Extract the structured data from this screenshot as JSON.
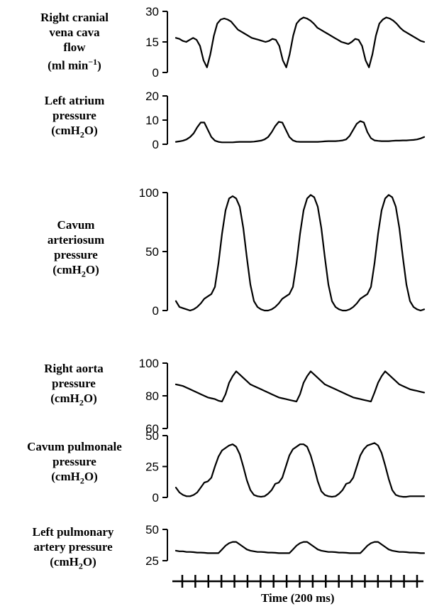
{
  "chart_data": {
    "type": "line",
    "x_axis": {
      "label": "Time (200 ms)",
      "tick_interval_ms": 200,
      "range_ms": [
        0,
        3600
      ]
    },
    "panels": [
      {
        "id": "rcvc",
        "label_lines": [
          "Right cranial",
          "vena cava",
          "flow"
        ],
        "unit_main": "(ml min",
        "unit_sup": "−1",
        "unit_tail": ")",
        "ylim": [
          0,
          30
        ],
        "yticks": [
          0,
          15,
          30
        ],
        "values": [
          17,
          16.5,
          15.5,
          15,
          16,
          17,
          16,
          13,
          6,
          2.5,
          9,
          18,
          24,
          26,
          26.5,
          26,
          25,
          23,
          21,
          20,
          19,
          18,
          17,
          16.5,
          16,
          15.5,
          15,
          15.5,
          16.5,
          16,
          13,
          6,
          2.5,
          9,
          18,
          24,
          26,
          27,
          26.5,
          25.5,
          24,
          22,
          21,
          20,
          19,
          18,
          17,
          16,
          15,
          14.5,
          14,
          15,
          16.5,
          16,
          13,
          6,
          2.5,
          9,
          18,
          24,
          26,
          27,
          26.5,
          25.5,
          24,
          22,
          20.5,
          19.5,
          18.5,
          17.5,
          16.5,
          15.5,
          15
        ]
      },
      {
        "id": "la",
        "label_lines": [
          "Left atrium",
          "pressure"
        ],
        "unit_main": "(cmH",
        "unit_sub": "2",
        "unit_tail": "O)",
        "ylim": [
          0,
          20
        ],
        "yticks": [
          0,
          10,
          20
        ],
        "values": [
          1,
          1.2,
          1.5,
          2,
          3,
          4.5,
          7,
          9,
          9,
          6,
          3,
          1.5,
          1,
          0.8,
          0.8,
          0.8,
          0.8,
          0.9,
          1,
          1,
          1,
          1,
          1.1,
          1.3,
          1.5,
          2,
          3,
          5,
          7.5,
          9.3,
          9,
          6,
          3,
          1.6,
          1.1,
          1,
          1,
          1,
          1,
          1,
          1,
          1.1,
          1.2,
          1.3,
          1.3,
          1.3,
          1.4,
          1.6,
          2,
          3.5,
          6,
          8.5,
          9.6,
          9,
          5,
          2.5,
          1.6,
          1.4,
          1.3,
          1.3,
          1.3,
          1.4,
          1.5,
          1.5,
          1.6,
          1.6,
          1.7,
          1.8,
          2,
          2.4,
          3
        ]
      },
      {
        "id": "ca",
        "label_lines": [
          "Cavum",
          "arteriosum",
          "pressure"
        ],
        "unit_main": "(cmH",
        "unit_sub": "2",
        "unit_tail": "O)",
        "ylim": [
          0,
          100
        ],
        "yticks": [
          0,
          50,
          100
        ],
        "values": [
          8,
          3,
          2,
          1,
          0,
          1,
          3,
          6,
          10,
          12,
          14,
          20,
          40,
          65,
          85,
          95,
          97,
          95,
          88,
          70,
          45,
          22,
          8,
          3,
          1,
          0,
          0,
          1,
          3,
          6,
          10,
          12,
          14,
          20,
          40,
          65,
          85,
          95,
          98,
          96,
          88,
          70,
          45,
          22,
          8,
          3,
          1,
          0,
          0,
          1,
          3,
          6,
          10,
          12,
          14,
          20,
          40,
          65,
          85,
          95,
          98,
          96,
          88,
          70,
          45,
          22,
          8,
          3,
          1,
          0,
          1
        ]
      },
      {
        "id": "ra",
        "label_lines": [
          "Right aorta",
          "pressure"
        ],
        "unit_main": "(cmH",
        "unit_sub": "2",
        "unit_tail": "O)",
        "ylim": [
          60,
          100
        ],
        "yticks": [
          60,
          80,
          100
        ],
        "values": [
          87,
          86.5,
          86,
          85,
          84,
          83,
          82,
          81,
          80,
          79,
          78.5,
          78,
          77,
          76.5,
          81,
          88,
          92,
          95,
          93,
          91,
          89,
          87,
          86,
          85,
          84,
          83,
          82,
          81,
          80,
          79,
          78.5,
          78,
          77.5,
          77,
          76.5,
          81,
          88,
          92,
          95,
          93,
          91,
          89,
          87,
          86,
          85,
          84,
          83,
          82,
          81,
          80,
          79,
          78.5,
          78,
          77.5,
          77,
          76.5,
          82,
          88,
          92,
          95,
          93,
          91,
          89,
          87,
          86,
          85,
          84,
          83.5,
          83,
          82.5,
          82
        ]
      },
      {
        "id": "cp",
        "label_lines": [
          "Cavum pulmonale",
          "pressure"
        ],
        "unit_main": "(cmH",
        "unit_sub": "2",
        "unit_tail": "O)",
        "ylim": [
          0,
          50
        ],
        "yticks": [
          0,
          25,
          50
        ],
        "values": [
          8,
          4,
          2,
          1,
          1,
          2,
          4,
          8,
          12,
          13,
          16,
          25,
          33,
          38,
          40,
          42,
          43,
          41,
          35,
          25,
          14,
          6,
          2,
          1,
          0.5,
          1,
          3,
          6,
          11,
          12,
          16,
          25,
          34,
          39,
          41,
          43,
          43,
          41,
          34,
          24,
          13,
          5,
          2,
          1,
          0.5,
          1,
          3,
          6,
          11,
          12,
          16,
          25,
          34,
          39,
          42,
          43,
          44,
          42,
          36,
          26,
          15,
          6,
          2,
          1,
          0.5,
          0.5,
          1,
          1,
          1,
          1,
          1
        ]
      },
      {
        "id": "lpa",
        "label_lines": [
          "Left pulmonary",
          "artery pressure"
        ],
        "unit_main": "(cmH",
        "unit_sub": "2",
        "unit_tail": "O)",
        "ylim": [
          25,
          50
        ],
        "yticks": [
          25,
          50
        ],
        "values": [
          33,
          32.5,
          32.5,
          32,
          32,
          31.8,
          31.5,
          31.5,
          31.3,
          31,
          31,
          31,
          31,
          34,
          37,
          39,
          40,
          40,
          38,
          36,
          34,
          33,
          32.5,
          32,
          32,
          31.8,
          31.5,
          31.5,
          31.3,
          31,
          31,
          31,
          31,
          34,
          37,
          39,
          40,
          40,
          38,
          36,
          34,
          33,
          32.5,
          32,
          32,
          31.8,
          31.5,
          31.5,
          31.3,
          31,
          31,
          31,
          31,
          34,
          37,
          39,
          40,
          40,
          38,
          36,
          34,
          33,
          32.5,
          32,
          32,
          31.8,
          31.5,
          31.5,
          31.3,
          31,
          31
        ]
      }
    ]
  }
}
